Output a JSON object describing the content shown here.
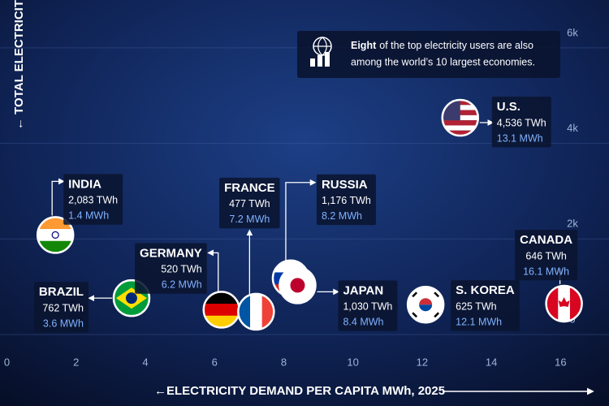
{
  "chart_data": {
    "type": "scatter",
    "y_axis_label": "← TOTAL ELECTRICITY",
    "x_axis_label": "←ELECTRICITY DEMAND PER CAPITA MWh, 2025",
    "annotation": [
      "Eight",
      "of the top electricity users are also",
      "among the world’s 10 largest economies."
    ],
    "categories": [
      "INDIA",
      "BRAZIL",
      "GERMANY",
      "FRANCE",
      "RUSSIA",
      "JAPAN",
      "S. KOREA",
      "CANADA",
      "U.S."
    ],
    "x": [
      1.4,
      3.6,
      6.2,
      7.2,
      8.2,
      8.4,
      12.1,
      16.1,
      13.1
    ],
    "x_labels": [
      "1.4 MWh",
      "3.6 MWh",
      "6.2 MWh",
      "7.2 MWh",
      "8.2 MWh",
      "8.4 MWh",
      "12.1 MWh",
      "16.1 MWh",
      "13.1 MWh"
    ],
    "values": [
      2083,
      762,
      520,
      477,
      1176,
      1030,
      625,
      646,
      4536
    ],
    "value_labels": [
      "2,083 TWh",
      "762 TWh",
      "520 TWh",
      "477 TWh",
      "1,176 TWh",
      "1,030 TWh",
      "625 TWh",
      "646 TWh",
      "4,536 TWh"
    ],
    "xlim": [
      -0.2,
      17.4
    ],
    "xticks": [
      0,
      2,
      4,
      6,
      8,
      10,
      12,
      14,
      16
    ],
    "ylim": [
      0,
      7000
    ],
    "yticks": [
      0,
      {
        "value": 2000,
        "label": "2k"
      },
      {
        "value": 4000,
        "label": "4k"
      },
      {
        "value": 6000,
        "label": "6k"
      }
    ],
    "grid": true
  }
}
